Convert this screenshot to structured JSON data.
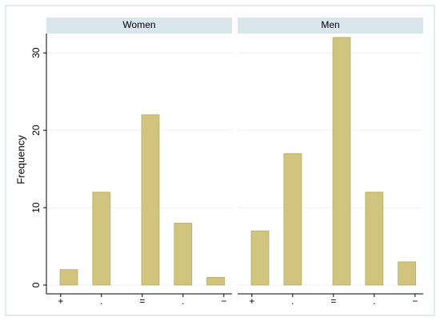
{
  "chart_data": {
    "type": "bar",
    "ylabel": "Frequency",
    "color": "#d0c47e",
    "x": [
      -1.8,
      -1,
      0.2,
      1,
      1.8
    ],
    "xlim": [
      -2.35,
      2.2
    ],
    "xticks": [
      {
        "value": -2,
        "label": "+"
      },
      {
        "value": -1,
        "label": "."
      },
      {
        "value": 0,
        "label": "="
      },
      {
        "value": 1,
        "label": "."
      },
      {
        "value": 2,
        "label": "−"
      }
    ],
    "ylim": [
      0,
      32.5
    ],
    "yticks": [
      0,
      10,
      20,
      30
    ],
    "grid": true,
    "panels": [
      {
        "title": "Women",
        "values": [
          2,
          12,
          22,
          8,
          1
        ]
      },
      {
        "title": "Men",
        "values": [
          7,
          17,
          32,
          12,
          3
        ]
      }
    ]
  }
}
